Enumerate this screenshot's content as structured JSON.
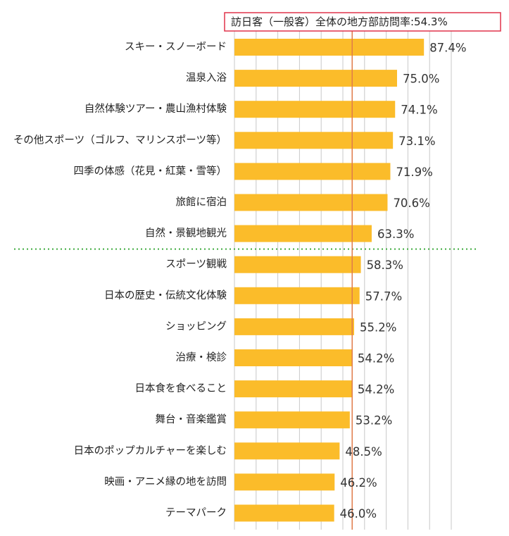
{
  "chart_data": {
    "type": "bar",
    "orientation": "horizontal",
    "reference_line": {
      "label": "訪日客（一般客）全体の地方部訪問率:54.3%",
      "value": 54.3
    },
    "xlim": [
      0,
      100
    ],
    "grid": "vertical",
    "separator_after_index": 6,
    "colors": {
      "bar": "#FBBC2A",
      "reference": "#E07B4A",
      "label_box": "#E0334A",
      "separator": "#3DAA3D",
      "grid": "#C8C8C8"
    },
    "categories": [
      "スキー・スノーボード",
      "温泉入浴",
      "自然体験ツアー・農山漁村体験",
      "その他スポーツ（ゴルフ、マリンスポーツ等）",
      "四季の体感（花見・紅葉・雪等）",
      "旅館に宿泊",
      "自然・景観地観光",
      "スポーツ観戦",
      "日本の歴史・伝統文化体験",
      "ショッピング",
      "治療・検診",
      "日本食を食べること",
      "舞台・音楽鑑賞",
      "日本のポップカルチャーを楽しむ",
      "映画・アニメ縁の地を訪問",
      "テーマパーク"
    ],
    "values": [
      87.4,
      75.0,
      74.1,
      73.1,
      71.9,
      70.6,
      63.3,
      58.3,
      57.7,
      55.2,
      54.2,
      54.2,
      53.2,
      48.5,
      46.2,
      46.0
    ],
    "value_labels": [
      "87.4%",
      "75.0%",
      "74.1%",
      "73.1%",
      "71.9%",
      "70.6%",
      "63.3%",
      "58.3%",
      "57.7%",
      "55.2%",
      "54.2%",
      "54.2%",
      "53.2%",
      "48.5%",
      "46.2%",
      "46.0%"
    ]
  }
}
